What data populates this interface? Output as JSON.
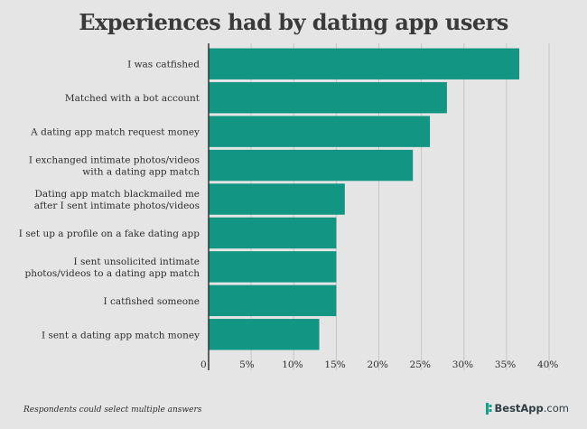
{
  "title": "Experiences had by dating app users",
  "footnote": "Respondents could select multiple answers",
  "brand": {
    "name": "BestApp",
    "suffix": ".com",
    "icon": "bestapp-logo-icon"
  },
  "colors": {
    "bar": "#139584",
    "background": "#e5e5e5",
    "grid": "#c6c6c6",
    "axis": "#333333"
  },
  "chart_data": {
    "type": "bar",
    "orientation": "horizontal",
    "title": "Experiences had by dating app users",
    "categories": [
      [
        "I was catfished"
      ],
      [
        "Matched with a bot account"
      ],
      [
        "A dating app match request money"
      ],
      [
        "I exchanged intimate photos/videos",
        "with a dating app match"
      ],
      [
        "Dating app match blackmailed me",
        "after I sent intimate photos/videos"
      ],
      [
        "I set up a profile on a fake dating app"
      ],
      [
        "I sent unsolicited intimate",
        "photos/videos to a dating app match"
      ],
      [
        "I catfished someone"
      ],
      [
        "I sent a dating app match money"
      ]
    ],
    "values": [
      36.5,
      28,
      26,
      24,
      16,
      15,
      15,
      15,
      13
    ],
    "xlim": [
      0,
      40
    ],
    "ticks": [
      0,
      5,
      10,
      15,
      20,
      25,
      30,
      35,
      40
    ],
    "tick_labels": [
      "0",
      "5%",
      "10%",
      "15%",
      "20%",
      "25%",
      "30%",
      "35%",
      "40%"
    ],
    "grid": true,
    "xlabel": "",
    "ylabel": ""
  }
}
